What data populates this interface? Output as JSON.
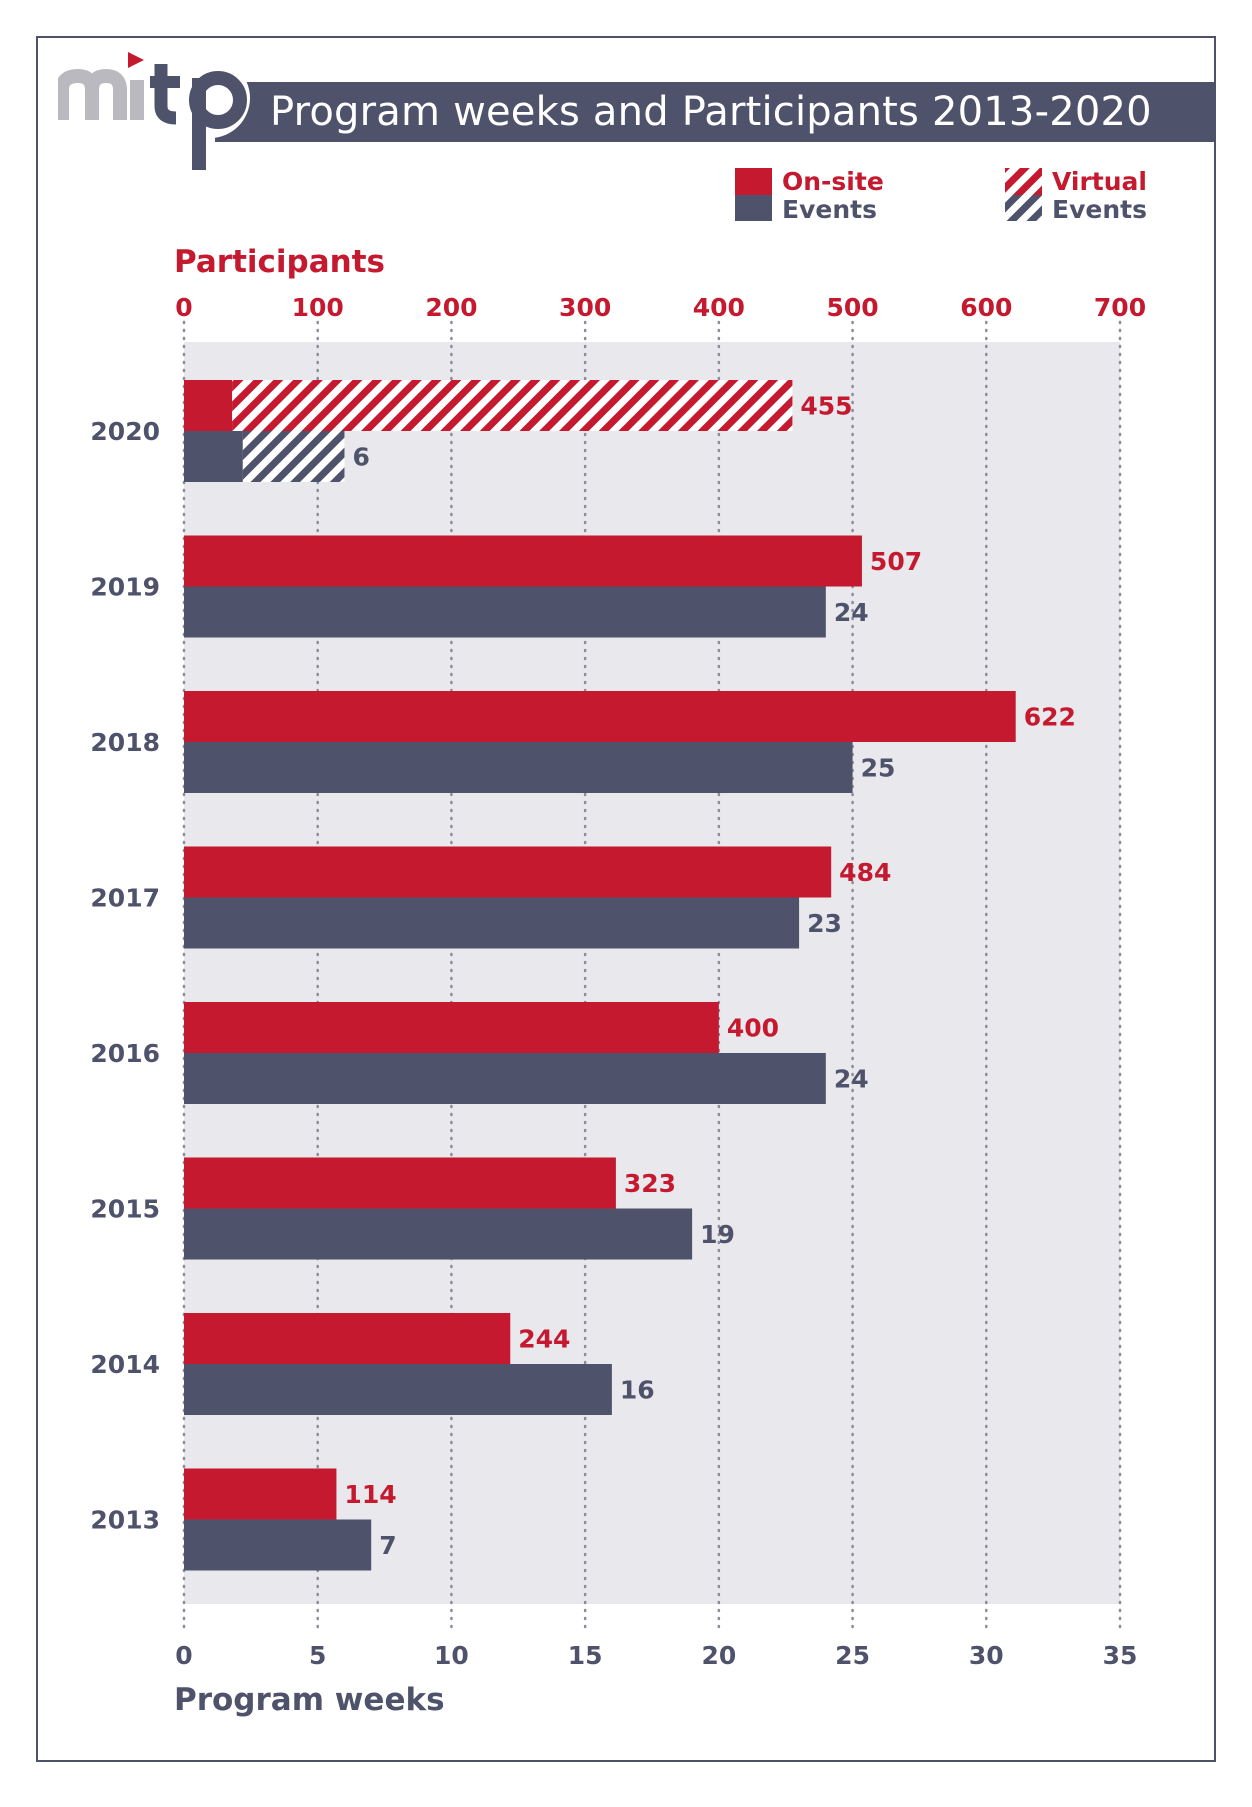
{
  "header": {
    "logo_text": "mitp",
    "title": "Program weeks and Participants 2013-2020"
  },
  "legend": {
    "onsite_label": "On-site",
    "virtual_label": "Virtual",
    "events_label": "Events"
  },
  "colors": {
    "participants": "#c4192e",
    "weeks": "#4f526b",
    "plot_background": "#e9e8ed",
    "frame": "#4f526b"
  },
  "chart_data": {
    "type": "bar",
    "orientation": "horizontal",
    "categories": [
      "2020",
      "2019",
      "2018",
      "2017",
      "2016",
      "2015",
      "2014",
      "2013"
    ],
    "series": [
      {
        "name": "On-site",
        "axis": "top",
        "values": [
          455,
          507,
          622,
          484,
          400,
          323,
          244,
          114
        ],
        "virtual_part": [
          419,
          0,
          0,
          0,
          0,
          0,
          0,
          0
        ]
      },
      {
        "name": "Events",
        "axis": "bottom",
        "values": [
          6,
          24,
          25,
          23,
          24,
          19,
          16,
          7
        ],
        "virtual_part": [
          3.8,
          0,
          0,
          0,
          0,
          0,
          0,
          0
        ]
      }
    ],
    "top_axis": {
      "label": "Participants",
      "ticks": [
        "0",
        "100",
        "200",
        "300",
        "400",
        "500",
        "600",
        "700"
      ],
      "range": [
        0,
        700
      ]
    },
    "bottom_axis": {
      "label": "Program weeks",
      "ticks": [
        "0",
        "5",
        "10",
        "15",
        "20",
        "25",
        "30",
        "35"
      ],
      "range": [
        0,
        35
      ]
    },
    "grid": "dotted vertical",
    "legend_position": "top-right"
  }
}
